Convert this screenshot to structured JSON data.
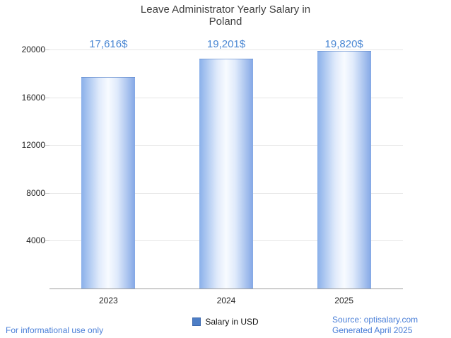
{
  "chart_data": {
    "type": "bar",
    "title": "Leave Administrator Yearly Salary in Poland",
    "categories": [
      "2023",
      "2024",
      "2025"
    ],
    "values": [
      17616,
      19201,
      19820
    ],
    "value_labels": [
      "17,616$",
      "19,201$",
      "19,820$"
    ],
    "yticks": [
      4000,
      8000,
      12000,
      16000,
      20000
    ],
    "ylim": [
      0,
      20000
    ],
    "grid": true,
    "legend": "Salary in USD",
    "legend_position": "bottom-center",
    "bar_color_edge": "#84a8e6",
    "bar_color_center": "#f8fbff",
    "value_label_color": "#4a87d3"
  },
  "footer": {
    "disclaimer": "For informational use only",
    "source": "Source: optisalary.com",
    "generated": "Generated April 2025"
  }
}
